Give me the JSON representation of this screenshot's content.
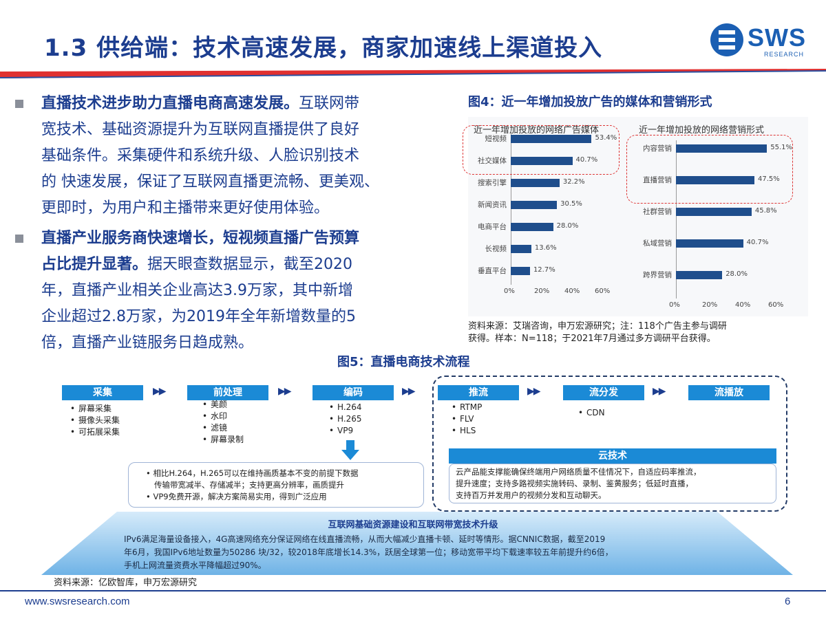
{
  "header": {
    "title": "1.3 供给端：技术高速发展，商家加速线上渠道投入",
    "logo_text": "SWS",
    "logo_sub": "RESEARCH"
  },
  "bullets": [
    {
      "bold": "直播技术进步助力直播电商高速发展。",
      "lines": [
        "互联网带",
        "宽技术、基础资源提升为互联网直播提供了良好",
        "基础条件。采集硬件和系统升级、人脸识别技术",
        "的 快速发展，保证了互联网直播更流畅、更美观、",
        "更即时，为用户和主播带来更好使用体验。"
      ]
    },
    {
      "bold_lines": [
        "直播产业服务商快速增长，短视频直播广告预算",
        "占比提升显著。"
      ],
      "lines": [
        "据天眼查数据显示，截至2020",
        "年，直播产业相关企业高达3.9万家，其中新增",
        "企业超过2.8万家，为2019年全年新增数量的5",
        "倍，直播产业链服务日趋成熟。"
      ]
    }
  ],
  "fig4": {
    "title": "图4：近一年增加投放广告的媒体和营销形式",
    "source_lines": [
      "资料来源：艾瑞咨询，申万宏源研究；注：118个广告主参与调研",
      "获得。样本：N=118；于2021年7月通过多方调研平台获得。"
    ]
  },
  "chart_data": [
    {
      "type": "bar",
      "orientation": "horizontal",
      "title": "近一年增加投放的网络广告媒体",
      "categories": [
        "短视频",
        "社交媒体",
        "搜索引擎",
        "新闻资讯",
        "电商平台",
        "长视频",
        "垂直平台"
      ],
      "values": [
        53.4,
        40.7,
        32.2,
        30.5,
        28.0,
        13.6,
        12.7
      ],
      "value_labels": [
        "53.4%",
        "40.7%",
        "32.2%",
        "30.5%",
        "28.0%",
        "13.6%",
        "12.7%"
      ],
      "xlim": [
        0,
        60
      ],
      "xticks": [
        "0%",
        "20%",
        "40%",
        "60%"
      ],
      "highlighted": [
        "短视频",
        "社交媒体"
      ]
    },
    {
      "type": "bar",
      "orientation": "horizontal",
      "title": "近一年增加投放的网络营销形式",
      "categories": [
        "内容营销",
        "直播营销",
        "社群营销",
        "私域营销",
        "跨界营销"
      ],
      "values": [
        55.1,
        47.5,
        45.8,
        40.7,
        28.0
      ],
      "value_labels": [
        "55.1%",
        "47.5%",
        "45.8%",
        "40.7%",
        "28.0%"
      ],
      "xlim": [
        0,
        60
      ],
      "xticks": [
        "0%",
        "20%",
        "40%",
        "60%"
      ],
      "highlighted": [
        "内容营销",
        "直播营销"
      ]
    }
  ],
  "fig5": {
    "title": "图5：直播电商技术流程",
    "stages": [
      {
        "label": "采集",
        "items": [
          "屏幕采集",
          "摄像头采集",
          "可拓展采集"
        ]
      },
      {
        "label": "前处理",
        "items": [
          "美颜",
          "水印",
          "滤镜",
          "屏幕录制"
        ]
      },
      {
        "label": "编码",
        "items": [
          "H.264",
          "H.265",
          "VP9"
        ]
      },
      {
        "label": "推流",
        "items": [
          "RTMP",
          "FLV",
          "HLS"
        ]
      },
      {
        "label": "流分发",
        "items": [
          "CDN"
        ]
      },
      {
        "label": "流播放",
        "items": []
      }
    ],
    "encoding_notes": [
      "相比H.264，H.265可以在维持画质基本不变的前提下数据",
      "传输带宽减半、存储减半；支持更高分辨率，画质提升",
      "VP9免费开源，解决方案简易实用，得到广泛应用"
    ],
    "cloud": {
      "label": "云技术",
      "lines": [
        "云产品能支撑能确保终端用户网络质量不佳情况下，自适应码率推流，",
        "提升速度；支持多路视频实施转码、录制、鉴黄服务；低延时直播，",
        "支持百万并发用户的视频分发和互动聊天。"
      ]
    },
    "banner": {
      "title": "互联网基础资源建设和互联网带宽技术升级",
      "lines": [
        "IPv6满足海量设备接入，4G高速网络充分保证网络在线直播流畅，从而大幅减少直播卡顿、延时等情形。据CNNIC数据，截至2019",
        "年6月，我国IPv6地址数量为50286 块/32，较2018年底增长14.3%，跃居全球第一位；移动宽带平均下载速率较五年前提升约6倍，",
        "手机上网流量资费水平降幅超过90%。"
      ]
    },
    "source": "资料来源：亿欧智库，申万宏源研究"
  },
  "footer": {
    "url": "www.swsresearch.com",
    "page": "6"
  },
  "colors": {
    "title_blue": "#1c3d8f",
    "bar_blue": "#1f4e8c",
    "stage_blue": "#1b8ad6",
    "highlight_red": "#d33333"
  }
}
